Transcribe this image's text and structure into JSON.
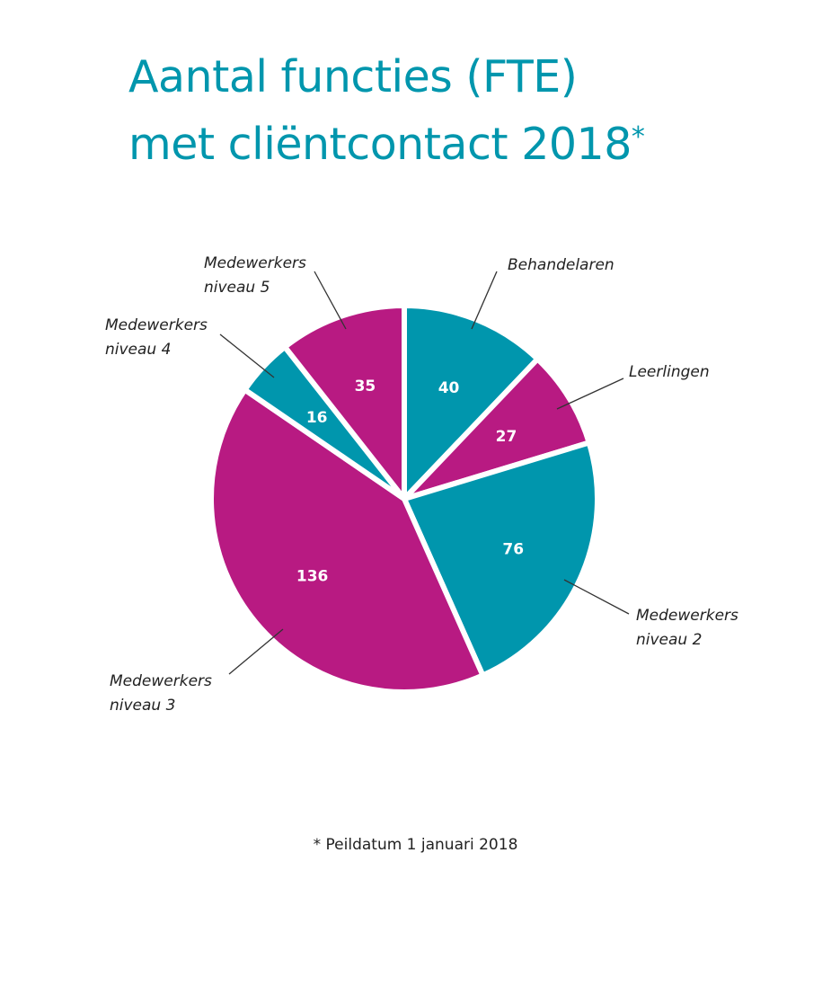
{
  "chart_data": {
    "type": "pie",
    "title_line1": "Aantal functies (FTE)",
    "title_line2": "met cliëntcontact 2018",
    "title_marker": "*",
    "start": "12 o'clock",
    "direction": "clockwise",
    "slices": [
      {
        "label_lines": [
          "Behandelaren"
        ],
        "value": 40,
        "color": "#0096ad"
      },
      {
        "label_lines": [
          "Leerlingen"
        ],
        "value": 27,
        "color": "#b81a82"
      },
      {
        "label_lines": [
          "Medewerkers",
          "niveau 2"
        ],
        "value": 76,
        "color": "#0096ad"
      },
      {
        "label_lines": [
          "Medewerkers",
          "niveau 3"
        ],
        "value": 136,
        "color": "#b81a82"
      },
      {
        "label_lines": [
          "Medewerkers",
          "niveau 4"
        ],
        "value": 16,
        "color": "#0096ad"
      },
      {
        "label_lines": [
          "Medewerkers",
          "niveau 5"
        ],
        "value": 35,
        "color": "#b81a82"
      }
    ],
    "footnote": "* Peildatum 1 januari 2018"
  }
}
